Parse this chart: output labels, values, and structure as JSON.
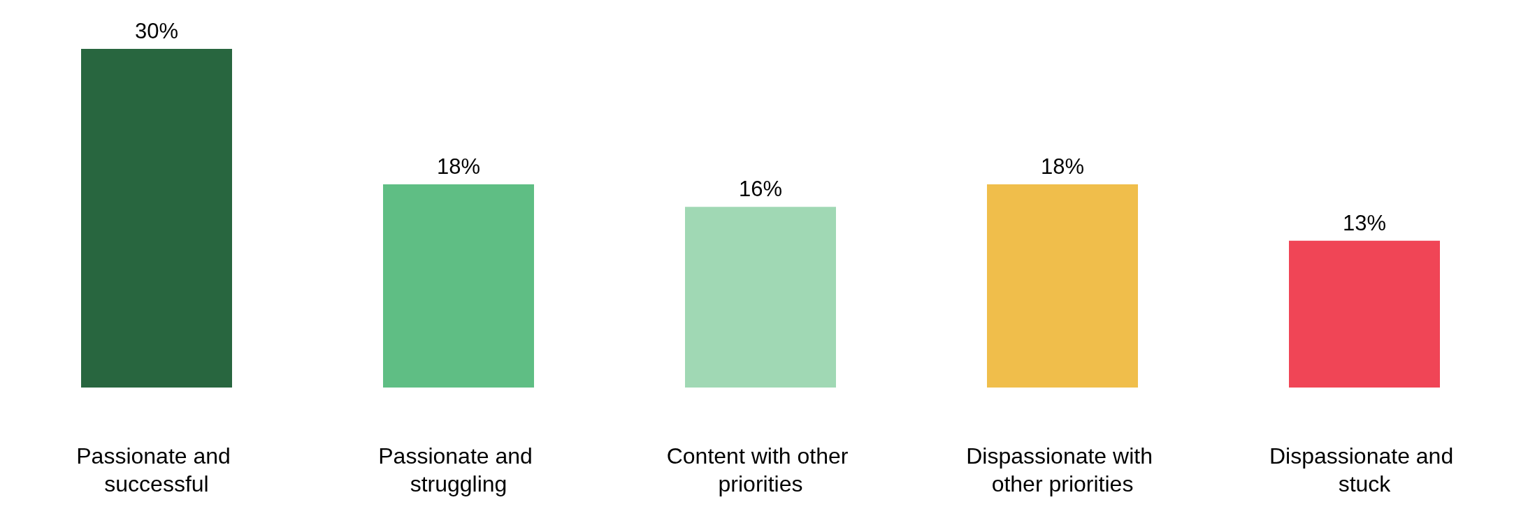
{
  "chart_data": {
    "type": "bar",
    "categories": [
      "Passionate and successful",
      "Passionate and struggling",
      "Content with other priorities",
      "Dispassionate with other priorities",
      "Dispassionate and stuck"
    ],
    "values": [
      30,
      18,
      16,
      18,
      13
    ],
    "colors": [
      "#28663f",
      "#5fbe84",
      "#a0d8b4",
      "#f0be4b",
      "#f04556"
    ],
    "value_labels": [
      "30%",
      "18%",
      "16%",
      "18%",
      "13%"
    ]
  }
}
